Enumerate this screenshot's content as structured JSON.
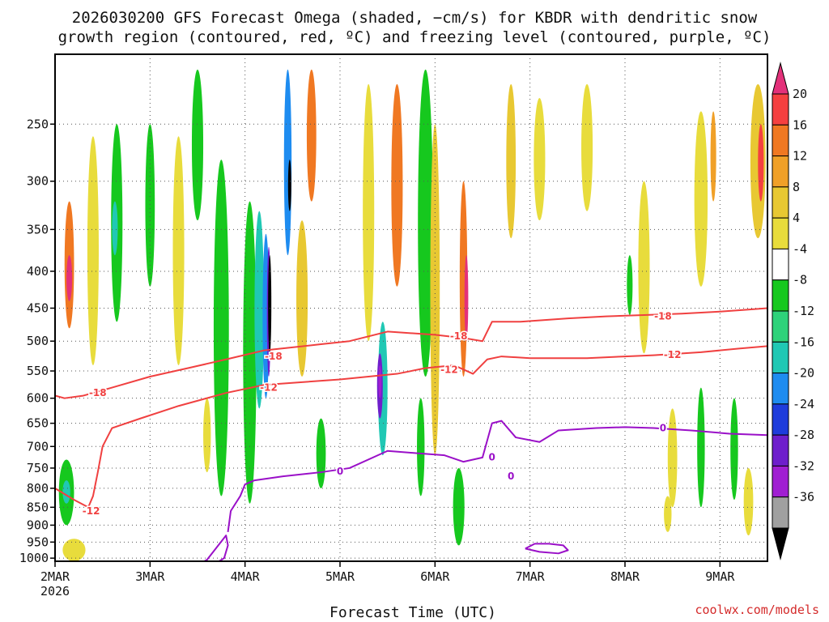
{
  "chart_data": {
    "type": "heatmap",
    "title_lines": [
      "2026030200 GFS Forecast Omega (shaded, −cm/s) for KBDR with dendritic snow",
      "growth region (contoured, red, ºC) and freezing level (contoured, purple, ºC)"
    ],
    "xlabel": "Forecast Time (UTC)",
    "ylabel": "",
    "credit": "coolwx.com/models",
    "x_ticks": [
      "2MAR",
      "3MAR",
      "4MAR",
      "5MAR",
      "6MAR",
      "7MAR",
      "8MAR",
      "9MAR"
    ],
    "x_tick_days": [
      2,
      3,
      4,
      5,
      6,
      7,
      8,
      9
    ],
    "x_year_label": "2026",
    "xlim_days": [
      2,
      9.5
    ],
    "y_ticks": [
      250,
      300,
      350,
      400,
      450,
      500,
      550,
      600,
      650,
      700,
      750,
      800,
      850,
      900,
      950,
      1000
    ],
    "ylim_hpa": [
      200,
      1010
    ],
    "y_scale": "log",
    "grid": true,
    "colorbar": {
      "labels": [
        "20",
        "16",
        "12",
        "8",
        "4",
        "-4",
        "-8",
        "-12",
        "-16",
        "-20",
        "-24",
        "-28",
        "-32",
        "-36"
      ],
      "bins": [
        {
          "color": "#e3317a"
        },
        {
          "color": "#f54040"
        },
        {
          "color": "#f07822"
        },
        {
          "color": "#f0a028"
        },
        {
          "color": "#e8c832"
        },
        {
          "color": "#e8dc3c"
        },
        {
          "color": "#ffffff"
        },
        {
          "color": "#16c81e"
        },
        {
          "color": "#2ed27a"
        },
        {
          "color": "#20c8b4"
        },
        {
          "color": "#1e8cf0"
        },
        {
          "color": "#1e3cdc"
        },
        {
          "color": "#6e1ecc"
        },
        {
          "color": "#a01ed2"
        },
        {
          "color": "#a0a0a0"
        },
        {
          "color": "#000000"
        }
      ]
    },
    "shaded_features": [
      {
        "day": 2.15,
        "top": 255,
        "bottom": 600,
        "half_width": 0.09,
        "level": "6"
      },
      {
        "day": 2.15,
        "top": 320,
        "bottom": 480,
        "half_width": 0.05,
        "level": "2"
      },
      {
        "day": 2.15,
        "top": 380,
        "bottom": 440,
        "half_width": 0.03,
        "level": "0"
      },
      {
        "day": 2.4,
        "top": 260,
        "bottom": 540,
        "half_width": 0.06,
        "level": "5"
      },
      {
        "day": 2.12,
        "top": 730,
        "bottom": 900,
        "half_width": 0.08,
        "level": "7"
      },
      {
        "day": 2.12,
        "top": 780,
        "bottom": 840,
        "half_width": 0.04,
        "level": "9"
      },
      {
        "day": 2.2,
        "top": 940,
        "bottom": 1010,
        "half_width": 0.12,
        "level": "5"
      },
      {
        "day": 2.65,
        "top": 250,
        "bottom": 470,
        "half_width": 0.06,
        "level": "7"
      },
      {
        "day": 2.63,
        "top": 320,
        "bottom": 380,
        "half_width": 0.03,
        "level": "9"
      },
      {
        "day": 3.0,
        "top": 250,
        "bottom": 420,
        "half_width": 0.05,
        "level": "7"
      },
      {
        "day": 3.3,
        "top": 260,
        "bottom": 540,
        "half_width": 0.06,
        "level": "5"
      },
      {
        "day": 3.5,
        "top": 210,
        "bottom": 340,
        "half_width": 0.06,
        "level": "7"
      },
      {
        "day": 3.75,
        "top": 280,
        "bottom": 820,
        "half_width": 0.08,
        "level": "7"
      },
      {
        "day": 4.05,
        "top": 320,
        "bottom": 840,
        "half_width": 0.07,
        "level": "7"
      },
      {
        "day": 4.15,
        "top": 330,
        "bottom": 620,
        "half_width": 0.05,
        "level": "9"
      },
      {
        "day": 4.22,
        "top": 355,
        "bottom": 600,
        "half_width": 0.035,
        "level": "10"
      },
      {
        "day": 4.25,
        "top": 370,
        "bottom": 560,
        "half_width": 0.02,
        "level": "12"
      },
      {
        "day": 4.26,
        "top": 380,
        "bottom": 520,
        "half_width": 0.012,
        "level": "15"
      },
      {
        "day": 4.45,
        "top": 210,
        "bottom": 380,
        "half_width": 0.04,
        "level": "10"
      },
      {
        "day": 4.47,
        "top": 280,
        "bottom": 330,
        "half_width": 0.015,
        "level": "15"
      },
      {
        "day": 4.7,
        "top": 210,
        "bottom": 320,
        "half_width": 0.05,
        "level": "2"
      },
      {
        "day": 4.6,
        "top": 340,
        "bottom": 560,
        "half_width": 0.06,
        "level": "4"
      },
      {
        "day": 5.45,
        "top": 470,
        "bottom": 720,
        "half_width": 0.05,
        "level": "9"
      },
      {
        "day": 5.42,
        "top": 520,
        "bottom": 640,
        "half_width": 0.03,
        "level": "12"
      },
      {
        "day": 5.42,
        "top": 540,
        "bottom": 600,
        "half_width": 0.015,
        "level": "13"
      },
      {
        "day": 5.6,
        "top": 220,
        "bottom": 420,
        "half_width": 0.06,
        "level": "2"
      },
      {
        "day": 5.3,
        "top": 220,
        "bottom": 500,
        "half_width": 0.06,
        "level": "5"
      },
      {
        "day": 5.9,
        "top": 210,
        "bottom": 560,
        "half_width": 0.08,
        "level": "7"
      },
      {
        "day": 6.0,
        "top": 250,
        "bottom": 720,
        "half_width": 0.05,
        "level": "4"
      },
      {
        "day": 6.3,
        "top": 300,
        "bottom": 560,
        "half_width": 0.04,
        "level": "2"
      },
      {
        "day": 6.33,
        "top": 380,
        "bottom": 500,
        "half_width": 0.02,
        "level": "0"
      },
      {
        "day": 6.25,
        "top": 750,
        "bottom": 960,
        "half_width": 0.06,
        "level": "7"
      },
      {
        "day": 6.8,
        "top": 220,
        "bottom": 360,
        "half_width": 0.05,
        "level": "4"
      },
      {
        "day": 7.1,
        "top": 230,
        "bottom": 340,
        "half_width": 0.06,
        "level": "5"
      },
      {
        "day": 7.6,
        "top": 220,
        "bottom": 330,
        "half_width": 0.06,
        "level": "5"
      },
      {
        "day": 8.2,
        "top": 300,
        "bottom": 520,
        "half_width": 0.06,
        "level": "5"
      },
      {
        "day": 8.05,
        "top": 380,
        "bottom": 460,
        "half_width": 0.03,
        "level": "7"
      },
      {
        "day": 8.8,
        "top": 240,
        "bottom": 420,
        "half_width": 0.07,
        "level": "5"
      },
      {
        "day": 8.93,
        "top": 240,
        "bottom": 320,
        "half_width": 0.03,
        "level": "3"
      },
      {
        "day": 9.4,
        "top": 220,
        "bottom": 360,
        "half_width": 0.08,
        "level": "4"
      },
      {
        "day": 9.43,
        "top": 250,
        "bottom": 320,
        "half_width": 0.03,
        "level": "1"
      },
      {
        "day": 8.5,
        "top": 620,
        "bottom": 850,
        "half_width": 0.05,
        "level": "5"
      },
      {
        "day": 8.8,
        "top": 580,
        "bottom": 850,
        "half_width": 0.04,
        "level": "7"
      },
      {
        "day": 9.15,
        "top": 600,
        "bottom": 830,
        "half_width": 0.04,
        "level": "7"
      },
      {
        "day": 9.3,
        "top": 750,
        "bottom": 930,
        "half_width": 0.05,
        "level": "5"
      },
      {
        "day": 8.45,
        "top": 820,
        "bottom": 920,
        "half_width": 0.04,
        "level": "5"
      },
      {
        "day": 5.85,
        "top": 600,
        "bottom": 820,
        "half_width": 0.04,
        "level": "7"
      },
      {
        "day": 4.8,
        "top": 640,
        "bottom": 800,
        "half_width": 0.05,
        "level": "7"
      },
      {
        "day": 3.6,
        "top": 600,
        "bottom": 760,
        "half_width": 0.04,
        "level": "5"
      }
    ],
    "red_contours": [
      {
        "label": "-18",
        "days": [
          2.0,
          2.1,
          2.3,
          2.6,
          3.0,
          3.4,
          3.8,
          4.2,
          4.5,
          4.8,
          5.1,
          5.5,
          6.0,
          6.3,
          6.5,
          6.6,
          6.9,
          7.4,
          7.8,
          8.2,
          8.6,
          9.0,
          9.3,
          9.5
        ],
        "hpa": [
          595,
          600,
          595,
          580,
          560,
          545,
          530,
          515,
          510,
          505,
          500,
          485,
          490,
          495,
          500,
          470,
          470,
          465,
          462,
          460,
          458,
          455,
          452,
          450
        ]
      },
      {
        "label": "-12",
        "days": [
          2.0,
          2.2,
          2.35,
          2.4,
          2.45,
          2.5,
          2.6,
          2.9,
          3.3,
          3.8,
          4.2,
          4.6,
          5.0,
          5.3,
          5.6,
          5.9,
          6.2,
          6.4,
          6.55,
          6.7,
          7.0,
          7.6,
          8.0,
          8.3,
          8.8,
          9.2,
          9.5
        ],
        "hpa": [
          800,
          830,
          850,
          820,
          760,
          700,
          660,
          640,
          615,
          590,
          575,
          570,
          565,
          560,
          555,
          545,
          540,
          555,
          530,
          525,
          528,
          528,
          525,
          523,
          518,
          512,
          508
        ]
      }
    ],
    "purple_contours": [
      {
        "label": "0",
        "days": [
          3.82,
          3.85,
          3.95,
          4.0,
          4.1,
          4.4,
          4.8,
          5.1,
          5.5,
          5.8,
          6.1,
          6.3,
          6.5,
          6.6,
          6.7,
          6.85,
          7.1,
          7.3,
          7.7,
          8.0,
          8.3,
          8.7,
          9.1,
          9.5
        ],
        "hpa": [
          920,
          860,
          820,
          790,
          780,
          770,
          760,
          750,
          710,
          715,
          720,
          735,
          725,
          650,
          645,
          680,
          690,
          665,
          660,
          658,
          660,
          665,
          672,
          675
        ]
      },
      {
        "label": "",
        "days": [
          3.0,
          3.4,
          3.6,
          3.7,
          3.78,
          3.82,
          3.8,
          3.6,
          3.4
        ],
        "hpa": [
          1060,
          1045,
          1030,
          1015,
          1000,
          960,
          930,
          1005,
          1040
        ]
      },
      {
        "label": "",
        "days": [
          6.95,
          7.05,
          7.2,
          7.35,
          7.4,
          7.3,
          7.1,
          6.95
        ],
        "hpa": [
          970,
          955,
          955,
          960,
          975,
          985,
          980,
          970
        ]
      }
    ],
    "contour_labels": [
      {
        "text": "-18",
        "day": 2.45,
        "hpa": 590,
        "color": "#f04040"
      },
      {
        "text": "-18",
        "day": 4.3,
        "hpa": 525,
        "color": "#f04040"
      },
      {
        "text": "-18",
        "day": 6.25,
        "hpa": 492,
        "color": "#f04040"
      },
      {
        "text": "-18",
        "day": 8.4,
        "hpa": 462,
        "color": "#f04040"
      },
      {
        "text": "-12",
        "day": 2.38,
        "hpa": 860,
        "color": "#f04040"
      },
      {
        "text": "-12",
        "day": 4.25,
        "hpa": 580,
        "color": "#f04040"
      },
      {
        "text": "-12",
        "day": 6.15,
        "hpa": 548,
        "color": "#f04040"
      },
      {
        "text": "-12",
        "day": 8.5,
        "hpa": 522,
        "color": "#f04040"
      },
      {
        "text": "0",
        "day": 5.0,
        "hpa": 758,
        "color": "#9a10c8"
      },
      {
        "text": "0",
        "day": 6.6,
        "hpa": 724,
        "color": "#9a10c8"
      },
      {
        "text": "0",
        "day": 8.4,
        "hpa": 660,
        "color": "#9a10c8"
      },
      {
        "text": "0",
        "day": 6.8,
        "hpa": 770,
        "color": "#9a10c8"
      }
    ],
    "terrain_color": "#a0522d"
  }
}
